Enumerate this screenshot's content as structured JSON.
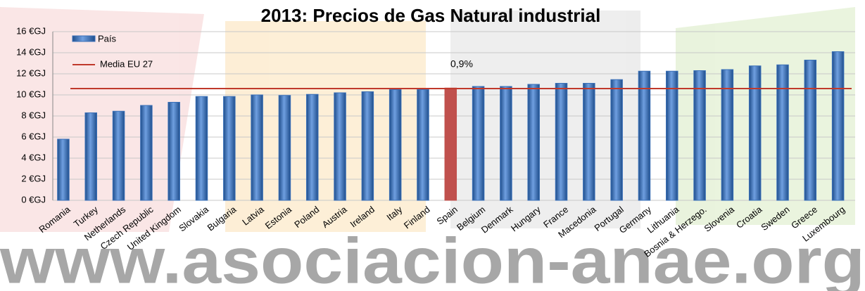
{
  "chart_data": {
    "type": "bar",
    "title": "2013: Precios de Gas Natural industrial",
    "categories": [
      "Romania",
      "Turkey",
      "Netherlands",
      "Czech Republic",
      "United Kingdom",
      "Slovakia",
      "Bulgaria",
      "Latvia",
      "Estonia",
      "Poland",
      "Austria",
      "Ireland",
      "Italy",
      "Finland",
      "Spain",
      "Belgium",
      "Denmark",
      "Hungary",
      "France",
      "Macedonia",
      "Portugal",
      "Germany",
      "Lithuania",
      "Bosnia & Herzego.",
      "Slovenia",
      "Croatia",
      "Sweden",
      "Greece",
      "Luxembourg"
    ],
    "series": [
      {
        "name": "País",
        "color": "#3a70b8",
        "colors": [
          "#3a70b8",
          "#3a70b8",
          "#3a70b8",
          "#3a70b8",
          "#3a70b8",
          "#3a70b8",
          "#3a70b8",
          "#3a70b8",
          "#3a70b8",
          "#3a70b8",
          "#3a70b8",
          "#3a70b8",
          "#3a70b8",
          "#3a70b8",
          "#c0504d",
          "#3a70b8",
          "#3a70b8",
          "#3a70b8",
          "#3a70b8",
          "#3a70b8",
          "#3a70b8",
          "#3a70b8",
          "#3a70b8",
          "#3a70b8",
          "#3a70b8",
          "#3a70b8",
          "#3a70b8",
          "#3a70b8",
          "#3a70b8"
        ],
        "values": [
          5.8,
          8.3,
          8.45,
          9.0,
          9.3,
          9.85,
          9.85,
          10.0,
          9.95,
          10.05,
          10.2,
          10.3,
          10.5,
          10.5,
          10.65,
          10.8,
          10.8,
          11.0,
          11.1,
          11.1,
          11.45,
          12.25,
          12.25,
          12.3,
          12.4,
          12.75,
          12.85,
          13.3,
          14.1
        ]
      }
    ],
    "reference_line": {
      "name": "Media EU 27",
      "color": "#c0392b",
      "value": 10.6
    },
    "annotation": "0,9%",
    "watermark": "www.asociacion-anae.org",
    "ylim": [
      0,
      16
    ],
    "yticks": [
      {
        "value": 0,
        "label": "0 €GJ"
      },
      {
        "value": 2,
        "label": "2 €GJ"
      },
      {
        "value": 4,
        "label": "4 €GJ"
      },
      {
        "value": 6,
        "label": "6 €GJ"
      },
      {
        "value": 8,
        "label": "8 €GJ"
      },
      {
        "value": 10,
        "label": "10 €GJ"
      },
      {
        "value": 12,
        "label": "12 €GJ"
      },
      {
        "value": 14,
        "label": "14 €GJ"
      },
      {
        "value": 16,
        "label": "16 €GJ"
      }
    ],
    "grid": true
  }
}
